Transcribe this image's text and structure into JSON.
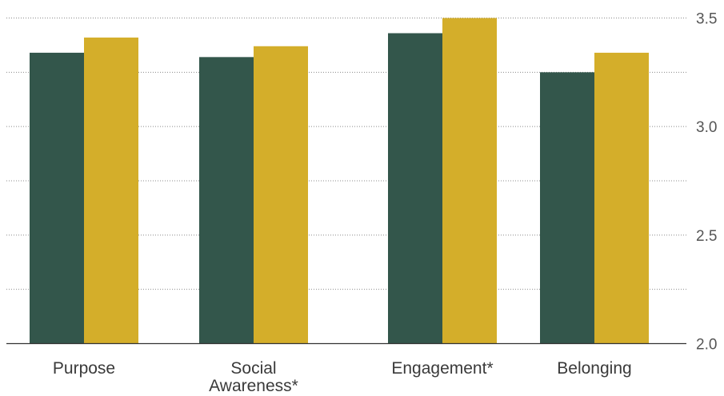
{
  "chart_data": {
    "type": "bar",
    "categories": [
      [
        "Purpose"
      ],
      [
        "Social",
        "Awareness*"
      ],
      [
        "Engagement*"
      ],
      [
        "Belonging"
      ]
    ],
    "series": [
      {
        "values": [
          3.34,
          3.32,
          3.43,
          3.25
        ],
        "color": "#33564b"
      },
      {
        "values": [
          3.41,
          3.37,
          3.5,
          3.34
        ],
        "color": "#d4ae2a"
      }
    ],
    "ylim": [
      2.0,
      3.5
    ],
    "yticks": [
      {
        "value": 2.0,
        "label": "2.0"
      },
      {
        "value": 2.5,
        "label": "2.5"
      },
      {
        "value": 3.0,
        "label": "3.0"
      },
      {
        "value": 3.5,
        "label": "3.5"
      }
    ],
    "minor_gridlines": [
      2.25,
      2.75,
      3.25
    ],
    "grid": true,
    "y_axis_side": "right",
    "xlabel": "",
    "ylabel": "",
    "title": ""
  }
}
